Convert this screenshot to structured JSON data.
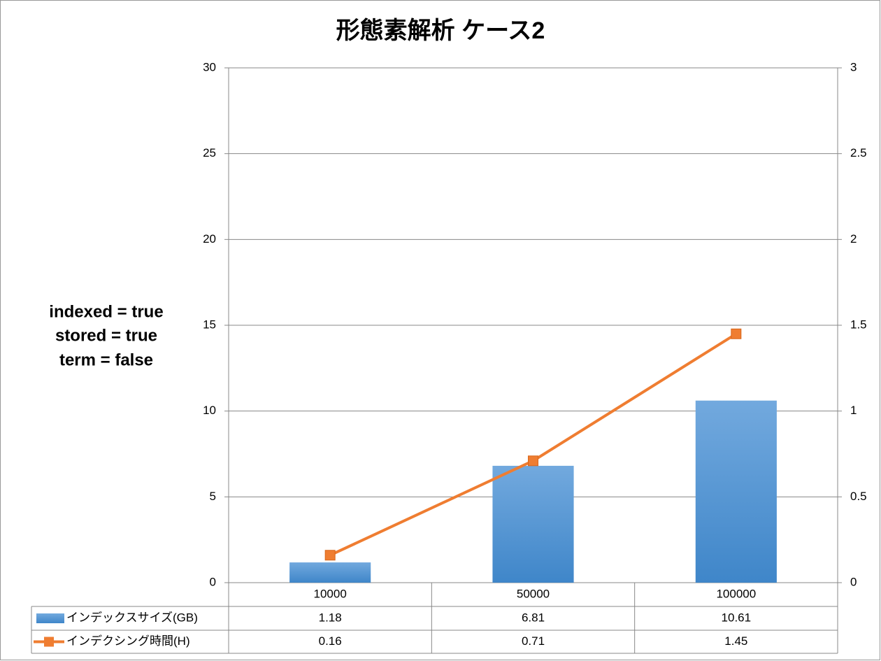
{
  "chart_data": {
    "type": "bar_line",
    "title": "形態素解析 ケース2",
    "annotations": [
      "indexed = true",
      "stored = true",
      "term = false"
    ],
    "categories": [
      "10000",
      "50000",
      "100000"
    ],
    "series": [
      {
        "name": "インデックスサイズ(GB)",
        "type": "bar",
        "color": "#4a90d6",
        "values": [
          1.18,
          6.81,
          10.61
        ]
      },
      {
        "name": "インデクシング時間(H)",
        "type": "line",
        "axis": "y2",
        "color": "#ef7d31",
        "values": [
          0.16,
          0.71,
          1.45
        ]
      }
    ],
    "ylim": [
      0,
      30
    ],
    "yticks": [
      0,
      5,
      10,
      15,
      20,
      25,
      30
    ],
    "y2lim": [
      0,
      3
    ],
    "y2ticks": [
      0,
      0.5,
      1,
      1.5,
      2,
      2.5,
      3
    ],
    "grid": true,
    "data_table": true
  }
}
